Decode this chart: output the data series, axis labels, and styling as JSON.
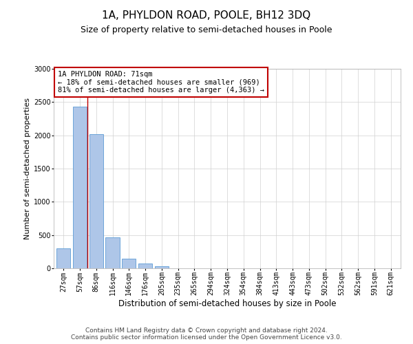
{
  "title": "1A, PHYLDON ROAD, POOLE, BH12 3DQ",
  "subtitle": "Size of property relative to semi-detached houses in Poole",
  "xlabel": "Distribution of semi-detached houses by size in Poole",
  "ylabel": "Number of semi-detached properties",
  "categories": [
    "27sqm",
    "57sqm",
    "86sqm",
    "116sqm",
    "146sqm",
    "176sqm",
    "205sqm",
    "235sqm",
    "265sqm",
    "294sqm",
    "324sqm",
    "354sqm",
    "384sqm",
    "413sqm",
    "443sqm",
    "473sqm",
    "502sqm",
    "532sqm",
    "562sqm",
    "591sqm",
    "621sqm"
  ],
  "values": [
    300,
    2430,
    2020,
    470,
    150,
    75,
    30,
    5,
    0,
    0,
    0,
    0,
    0,
    0,
    0,
    0,
    0,
    0,
    0,
    0,
    0
  ],
  "bar_color": "#aec6e8",
  "bar_edge_color": "#5b9bd5",
  "vline_color": "#c00000",
  "annotation_text": "1A PHYLDON ROAD: 71sqm\n← 18% of semi-detached houses are smaller (969)\n81% of semi-detached houses are larger (4,363) →",
  "annotation_box_color": "#ffffff",
  "annotation_box_edge_color": "#c00000",
  "ylim": [
    0,
    3000
  ],
  "yticks": [
    0,
    500,
    1000,
    1500,
    2000,
    2500,
    3000
  ],
  "grid_color": "#d0d0d0",
  "background_color": "#ffffff",
  "footer_line1": "Contains HM Land Registry data © Crown copyright and database right 2024.",
  "footer_line2": "Contains public sector information licensed under the Open Government Licence v3.0.",
  "title_fontsize": 11,
  "subtitle_fontsize": 9,
  "xlabel_fontsize": 8.5,
  "ylabel_fontsize": 8,
  "tick_fontsize": 7,
  "annotation_fontsize": 7.5,
  "footer_fontsize": 6.5
}
